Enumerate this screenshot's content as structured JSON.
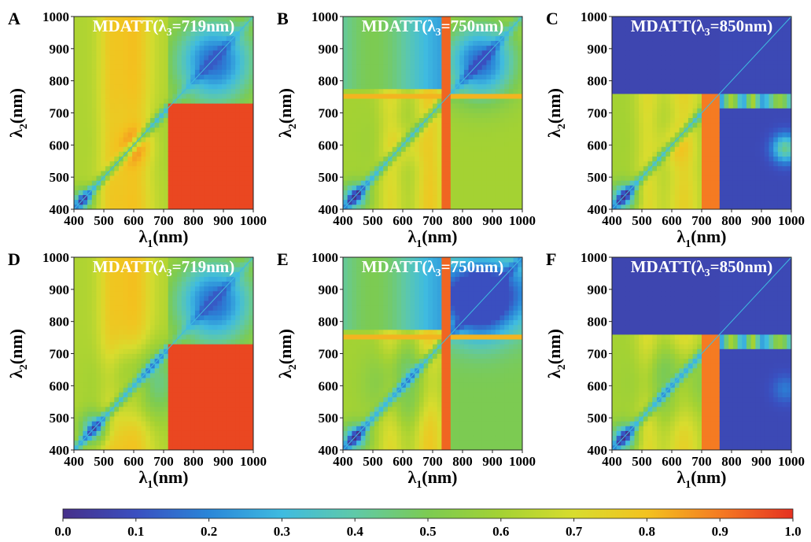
{
  "chart_data": {
    "type": "heatmap",
    "x_ticks": [
      "400",
      "500",
      "600",
      "700",
      "800",
      "900",
      "1000"
    ],
    "y_ticks": [
      "400",
      "500",
      "600",
      "700",
      "800",
      "900",
      "1000"
    ],
    "x_range": [
      400,
      1000
    ],
    "y_range": [
      400,
      1000
    ],
    "xlabel": {
      "main": "λ",
      "sub": "1",
      "tail": "(nm)"
    },
    "ylabel": {
      "main": "λ",
      "sub": "2",
      "tail": "(nm)"
    },
    "colorbar": {
      "range": [
        0.0,
        1.0
      ],
      "ticks": [
        "0.0",
        "0.1",
        "0.2",
        "0.3",
        "0.4",
        "0.5",
        "0.6",
        "0.7",
        "0.8",
        "0.9",
        "1.0"
      ],
      "colors": [
        "#46308a",
        "#3a4fc0",
        "#2a86d8",
        "#3fbbe0",
        "#5fc9a8",
        "#7ccb52",
        "#a4d233",
        "#d8dc2e",
        "#f3c21f",
        "#f57b22",
        "#e53121"
      ]
    },
    "panels": [
      {
        "letter": "A",
        "title": {
          "pre": "MDATT(λ",
          "sub": "3",
          "post": "=719nm)"
        },
        "lambda3": 719
      },
      {
        "letter": "B",
        "title": {
          "pre": "MDATT(λ",
          "sub": "3",
          "post": "=750nm)"
        },
        "lambda3": 750
      },
      {
        "letter": "C",
        "title": {
          "pre": "MDATT(λ",
          "sub": "3",
          "post": "=850nm)"
        },
        "lambda3": 850
      },
      {
        "letter": "D",
        "title": {
          "pre": "MDATT(λ",
          "sub": "3",
          "post": "=719nm)"
        },
        "lambda3": 719
      },
      {
        "letter": "E",
        "title": {
          "pre": "MDATT(λ",
          "sub": "3",
          "post": "=750nm)"
        },
        "lambda3": 750
      },
      {
        "letter": "F",
        "title": {
          "pre": "MDATT(λ",
          "sub": "3",
          "post": "=850nm)"
        },
        "lambda3": 850
      }
    ]
  }
}
